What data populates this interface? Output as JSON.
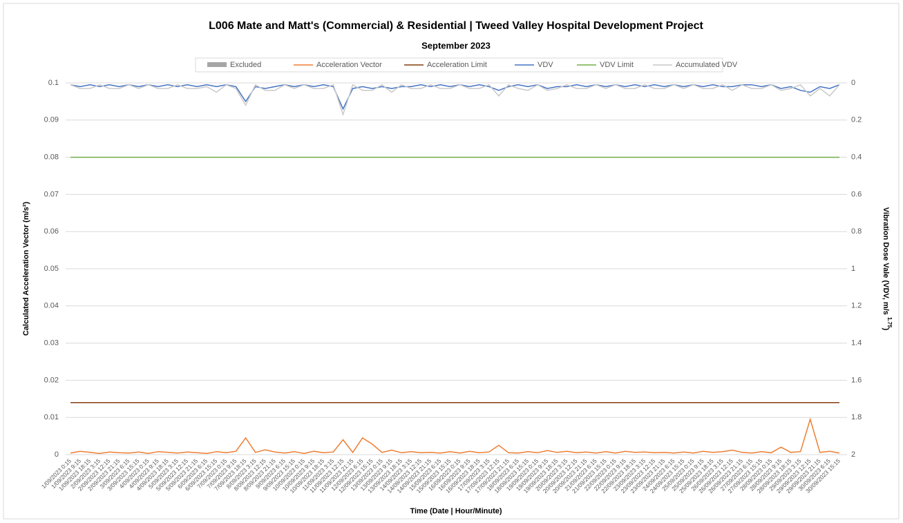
{
  "chart_data": {
    "type": "line",
    "title": "L006 Mate and Matt's (Commercial) & Residential | Tweed Valley Hospital Development Project",
    "subtitle": "September 2023",
    "x_label": "Time  (Date | Hour/Minute)",
    "y_label": "Calculated Acceleration Vector (m/s²)",
    "y2_label": "Vibration Dose Vale (VDV, m/s",
    "y2_label_sup": "1.75",
    "y2_label_end": ")",
    "ylim": [
      0,
      0.1
    ],
    "yticks": [
      0,
      0.01,
      0.02,
      0.03,
      0.04,
      0.05,
      0.06,
      0.07,
      0.08,
      0.09,
      0.1
    ],
    "y2lim": [
      2,
      0
    ],
    "y2ticks": [
      0,
      0.2,
      0.4,
      0.6,
      0.8,
      1,
      1.2,
      1.4,
      1.6,
      1.8,
      2
    ],
    "y2_reversed": true,
    "grid": true,
    "legend": "top",
    "categories": [
      "1/09/2023 0:15",
      "1/09/2023 9:15",
      "1/09/2023 18:15",
      "2/09/2023 3:15",
      "2/09/2023 12:15",
      "2/09/2023 21:15",
      "3/09/2023 6:15",
      "3/09/2023 15:15",
      "4/09/2023 0:15",
      "4/09/2023 9:15",
      "4/09/2023 18:15",
      "5/09/2023 3:15",
      "5/09/2023 12:15",
      "5/09/2023 21:15",
      "6/09/2023 6:15",
      "6/09/2023 15:15",
      "7/09/2023 0:15",
      "7/09/2023 9:15",
      "7/09/2023 18:15",
      "8/09/2023 3:15",
      "8/09/2023 12:15",
      "8/09/2023 21:15",
      "9/09/2023 6:15",
      "9/09/2023 15:15",
      "10/09/2023 0:15",
      "10/09/2023 9:15",
      "10/09/2023 18:15",
      "11/09/2023 3:15",
      "11/09/2023 12:15",
      "11/09/2023 21:15",
      "12/09/2023 6:15",
      "12/09/2023 15:15",
      "13/09/2023 0:15",
      "13/09/2023 9:15",
      "13/09/2023 18:15",
      "14/09/2023 3:15",
      "14/09/2023 12:15",
      "14/09/2023 21:15",
      "15/09/2023 6:15",
      "15/09/2023 15:15",
      "16/09/2023 0:15",
      "16/09/2023 9:15",
      "16/09/2023 18:15",
      "17/09/2023 3:15",
      "17/09/2023 12:15",
      "17/09/2023 21:15",
      "18/09/2023 6:15",
      "18/09/2023 15:15",
      "19/09/2023 0:15",
      "19/09/2023 9:15",
      "19/09/2023 18:15",
      "20/09/2023 3:15",
      "20/09/2023 12:15",
      "20/09/2023 21:15",
      "21/09/2023 6:15",
      "21/09/2023 15:15",
      "22/09/2023 0:15",
      "22/09/2023 9:15",
      "22/09/2023 18:15",
      "23/09/2023 3:15",
      "23/09/2023 12:15",
      "23/09/2023 21:15",
      "24/09/2023 6:15",
      "24/09/2023 15:15",
      "25/09/2023 0:15",
      "25/09/2023 9:15",
      "25/09/2023 18:15",
      "26/09/2023 3:15",
      "26/09/2023 12:15",
      "26/09/2023 21:15",
      "27/09/2023 6:15",
      "27/09/2023 15:15",
      "28/09/2023 0:15",
      "28/09/2023 9:15",
      "28/09/2023 18:15",
      "29/09/2023 3:15",
      "29/09/2023 12:15",
      "29/09/2023 21:15",
      "30/09/2023 6:15",
      "30/09/2023 15:15"
    ],
    "series": [
      {
        "name": "Excluded",
        "color": "#a6a6a6",
        "style": "bar",
        "values": [
          null,
          null,
          null,
          null,
          null,
          null,
          null,
          null,
          null,
          null,
          null,
          null,
          null,
          null,
          null,
          null,
          null,
          null,
          null,
          null,
          null,
          null,
          null,
          null,
          null,
          null,
          null,
          null,
          null,
          null,
          null,
          null,
          null,
          null,
          null,
          null,
          null,
          null,
          null,
          null,
          null,
          null,
          null,
          null,
          null,
          null,
          null,
          null,
          null,
          null,
          null,
          null,
          null,
          null,
          null,
          null,
          null,
          null,
          null,
          null,
          null,
          null,
          null,
          null,
          null,
          null,
          null,
          null,
          null,
          null,
          null,
          null,
          null,
          null,
          null,
          null,
          null,
          null,
          null,
          null
        ]
      },
      {
        "name": "Acceleration Vector",
        "color": "#ed7d31",
        "values": [
          0.0004,
          0.0009,
          0.0006,
          0.0003,
          0.0007,
          0.0005,
          0.0004,
          0.0007,
          0.0003,
          0.0008,
          0.0006,
          0.0004,
          0.0007,
          0.0005,
          0.0003,
          0.0008,
          0.0005,
          0.0009,
          0.0045,
          0.0006,
          0.0013,
          0.0007,
          0.0004,
          0.0008,
          0.0003,
          0.0009,
          0.0005,
          0.0007,
          0.004,
          0.0006,
          0.0045,
          0.0028,
          0.0006,
          0.0012,
          0.0005,
          0.0008,
          0.0005,
          0.0006,
          0.0004,
          0.0008,
          0.0004,
          0.0009,
          0.0005,
          0.0007,
          0.0025,
          0.0005,
          0.0004,
          0.0008,
          0.0005,
          0.0011,
          0.0006,
          0.0009,
          0.0005,
          0.0007,
          0.0004,
          0.0008,
          0.0004,
          0.0009,
          0.0006,
          0.0007,
          0.0005,
          0.0006,
          0.0004,
          0.0007,
          0.0004,
          0.0009,
          0.0006,
          0.0008,
          0.0012,
          0.0006,
          0.0004,
          0.0008,
          0.0005,
          0.002,
          0.0006,
          0.0008,
          0.0095,
          0.0006,
          0.0009,
          0.0004
        ]
      },
      {
        "name": "Acceleration Limit",
        "color": "#843c0c",
        "values": [
          0.014,
          0.014,
          0.014,
          0.014,
          0.014,
          0.014,
          0.014,
          0.014,
          0.014,
          0.014,
          0.014,
          0.014,
          0.014,
          0.014,
          0.014,
          0.014,
          0.014,
          0.014,
          0.014,
          0.014,
          0.014,
          0.014,
          0.014,
          0.014,
          0.014,
          0.014,
          0.014,
          0.014,
          0.014,
          0.014,
          0.014,
          0.014,
          0.014,
          0.014,
          0.014,
          0.014,
          0.014,
          0.014,
          0.014,
          0.014,
          0.014,
          0.014,
          0.014,
          0.014,
          0.014,
          0.014,
          0.014,
          0.014,
          0.014,
          0.014,
          0.014,
          0.014,
          0.014,
          0.014,
          0.014,
          0.014,
          0.014,
          0.014,
          0.014,
          0.014,
          0.014,
          0.014,
          0.014,
          0.014,
          0.014,
          0.014,
          0.014,
          0.014,
          0.014,
          0.014,
          0.014,
          0.014,
          0.014,
          0.014,
          0.014,
          0.014,
          0.014,
          0.014,
          0.014,
          0.014
        ]
      },
      {
        "name": "VDV",
        "color": "#4472c4",
        "axis": "y2",
        "values": [
          0.01,
          0.02,
          0.01,
          0.02,
          0.01,
          0.02,
          0.01,
          0.02,
          0.01,
          0.02,
          0.01,
          0.02,
          0.01,
          0.02,
          0.01,
          0.02,
          0.01,
          0.02,
          0.1,
          0.02,
          0.03,
          0.02,
          0.01,
          0.02,
          0.01,
          0.02,
          0.01,
          0.02,
          0.14,
          0.03,
          0.02,
          0.03,
          0.02,
          0.03,
          0.02,
          0.02,
          0.01,
          0.02,
          0.01,
          0.02,
          0.01,
          0.02,
          0.01,
          0.02,
          0.04,
          0.02,
          0.01,
          0.02,
          0.01,
          0.03,
          0.02,
          0.02,
          0.01,
          0.02,
          0.01,
          0.02,
          0.01,
          0.02,
          0.01,
          0.02,
          0.01,
          0.02,
          0.01,
          0.02,
          0.01,
          0.02,
          0.01,
          0.02,
          0.02,
          0.01,
          0.01,
          0.02,
          0.01,
          0.03,
          0.02,
          0.04,
          0.05,
          0.02,
          0.03,
          0.01
        ]
      },
      {
        "name": "VDV Limit",
        "color": "#70ad47",
        "axis": "y2",
        "values": [
          0.4,
          0.4,
          0.4,
          0.4,
          0.4,
          0.4,
          0.4,
          0.4,
          0.4,
          0.4,
          0.4,
          0.4,
          0.4,
          0.4,
          0.4,
          0.4,
          0.4,
          0.4,
          0.4,
          0.4,
          0.4,
          0.4,
          0.4,
          0.4,
          0.4,
          0.4,
          0.4,
          0.4,
          0.4,
          0.4,
          0.4,
          0.4,
          0.4,
          0.4,
          0.4,
          0.4,
          0.4,
          0.4,
          0.4,
          0.4,
          0.4,
          0.4,
          0.4,
          0.4,
          0.4,
          0.4,
          0.4,
          0.4,
          0.4,
          0.4,
          0.4,
          0.4,
          0.4,
          0.4,
          0.4,
          0.4,
          0.4,
          0.4,
          0.4,
          0.4,
          0.4,
          0.4,
          0.4,
          0.4,
          0.4,
          0.4,
          0.4,
          0.4,
          0.4,
          0.4,
          0.4,
          0.4,
          0.4,
          0.4,
          0.4,
          0.4,
          0.4,
          0.4,
          0.4,
          0.4
        ]
      },
      {
        "name": "Accumulated VDV",
        "color": "#c9c9c9",
        "axis": "y2",
        "values": [
          0.01,
          0.03,
          0.03,
          0.01,
          0.03,
          0.03,
          0.01,
          0.03,
          0.01,
          0.03,
          0.03,
          0.01,
          0.03,
          0.03,
          0.02,
          0.05,
          0.01,
          0.03,
          0.12,
          0.01,
          0.04,
          0.04,
          0.01,
          0.03,
          0.01,
          0.03,
          0.03,
          0.01,
          0.17,
          0.01,
          0.04,
          0.04,
          0.01,
          0.05,
          0.01,
          0.03,
          0.03,
          0.01,
          0.03,
          0.03,
          0.01,
          0.03,
          0.03,
          0.01,
          0.07,
          0.01,
          0.03,
          0.04,
          0.01,
          0.04,
          0.03,
          0.01,
          0.03,
          0.03,
          0.01,
          0.03,
          0.01,
          0.03,
          0.03,
          0.01,
          0.03,
          0.03,
          0.01,
          0.03,
          0.01,
          0.03,
          0.03,
          0.01,
          0.04,
          0.01,
          0.03,
          0.03,
          0.01,
          0.04,
          0.03,
          0.01,
          0.07,
          0.03,
          0.07,
          0.01
        ]
      }
    ]
  }
}
